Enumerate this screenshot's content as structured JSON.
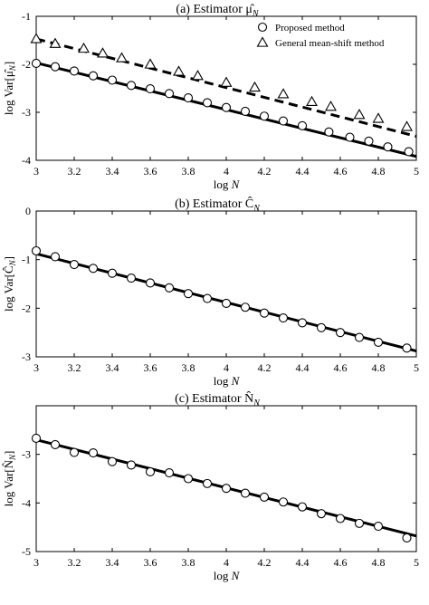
{
  "chart_data": [
    {
      "type": "scatter",
      "title": "(a) Estimator μ̂_N",
      "xlabel": "log N",
      "ylabel": "log Var[μ̂_N]",
      "xlim": [
        3,
        5
      ],
      "ylim": [
        -4,
        -1
      ],
      "x_ticks": [
        "3",
        "3.2",
        "3.4",
        "3.6",
        "3.8",
        "4",
        "4.2",
        "4.4",
        "4.6",
        "4.8",
        "5"
      ],
      "y_ticks": [
        "-1",
        "-2",
        "-3",
        "-4"
      ],
      "legend": {
        "position": "top-right",
        "entries": [
          "Proposed method",
          "General mean-shift method"
        ]
      },
      "series": [
        {
          "name": "Proposed method",
          "marker": "circle",
          "x": [
            3.0,
            3.1,
            3.2,
            3.3,
            3.4,
            3.5,
            3.6,
            3.7,
            3.8,
            3.9,
            4.0,
            4.1,
            4.2,
            4.3,
            4.4,
            4.54,
            4.65,
            4.75,
            4.85,
            4.96
          ],
          "y": [
            -1.98,
            -2.05,
            -2.14,
            -2.24,
            -2.33,
            -2.44,
            -2.51,
            -2.61,
            -2.7,
            -2.8,
            -2.9,
            -2.98,
            -3.08,
            -3.18,
            -3.28,
            -3.41,
            -3.52,
            -3.6,
            -3.72,
            -3.82
          ],
          "fit": {
            "x": [
              3,
              5
            ],
            "y": [
              -1.97,
              -3.92
            ],
            "style": "solid"
          }
        },
        {
          "name": "General mean-shift method",
          "marker": "triangle",
          "x": [
            3.0,
            3.1,
            3.25,
            3.35,
            3.45,
            3.6,
            3.75,
            3.85,
            4.0,
            4.15,
            4.3,
            4.45,
            4.55,
            4.7,
            4.8,
            4.95
          ],
          "y": [
            -1.47,
            -1.57,
            -1.67,
            -1.77,
            -1.87,
            -2.0,
            -2.15,
            -2.24,
            -2.38,
            -2.48,
            -2.62,
            -2.78,
            -2.88,
            -3.05,
            -3.13,
            -3.3
          ],
          "fit": {
            "x": [
              3,
              5
            ],
            "y": [
              -1.47,
              -3.5
            ],
            "style": "dashed"
          }
        }
      ]
    },
    {
      "type": "scatter",
      "title": "(b) Estimator Ĉ_N",
      "xlabel": "log N",
      "ylabel": "log Var[Ĉ_N]",
      "xlim": [
        3,
        5
      ],
      "ylim": [
        -3,
        0
      ],
      "x_ticks": [
        "3",
        "3.2",
        "3.4",
        "3.6",
        "3.8",
        "4",
        "4.2",
        "4.4",
        "4.6",
        "4.8",
        "5"
      ],
      "y_ticks": [
        "0",
        "-1",
        "-2",
        "-3"
      ],
      "series": [
        {
          "name": "Proposed method",
          "marker": "circle",
          "x": [
            3.0,
            3.1,
            3.2,
            3.3,
            3.4,
            3.5,
            3.6,
            3.7,
            3.8,
            3.9,
            4.0,
            4.1,
            4.2,
            4.3,
            4.4,
            4.5,
            4.6,
            4.7,
            4.8,
            4.95
          ],
          "y": [
            -0.82,
            -0.94,
            -1.1,
            -1.18,
            -1.28,
            -1.38,
            -1.48,
            -1.58,
            -1.7,
            -1.8,
            -1.9,
            -1.98,
            -2.1,
            -2.2,
            -2.3,
            -2.4,
            -2.5,
            -2.6,
            -2.7,
            -2.82
          ],
          "fit": {
            "x": [
              3,
              5
            ],
            "y": [
              -0.88,
              -2.88
            ],
            "style": "solid"
          }
        }
      ]
    },
    {
      "type": "scatter",
      "title": "(c) Estimator N̂_N",
      "xlabel": "log N",
      "ylabel": "log Var[N̂_N]",
      "xlim": [
        3,
        5
      ],
      "ylim": [
        -5,
        -2
      ],
      "x_ticks": [
        "3",
        "3.2",
        "3.4",
        "3.6",
        "3.8",
        "4",
        "4.2",
        "4.4",
        "4.6",
        "4.8",
        "5"
      ],
      "y_ticks": [
        "-3",
        "-4",
        "-5"
      ],
      "series": [
        {
          "name": "Proposed method",
          "marker": "circle",
          "x": [
            3.0,
            3.1,
            3.2,
            3.3,
            3.4,
            3.5,
            3.6,
            3.7,
            3.8,
            3.9,
            4.0,
            4.1,
            4.2,
            4.3,
            4.4,
            4.5,
            4.6,
            4.7,
            4.8,
            4.95
          ],
          "y": [
            -2.67,
            -2.8,
            -2.96,
            -2.97,
            -3.15,
            -3.22,
            -3.36,
            -3.38,
            -3.5,
            -3.6,
            -3.7,
            -3.8,
            -3.88,
            -3.98,
            -4.08,
            -4.22,
            -4.32,
            -4.42,
            -4.48,
            -4.72
          ],
          "fit": {
            "x": [
              3,
              5
            ],
            "y": [
              -2.7,
              -4.68
            ],
            "style": "solid"
          }
        }
      ]
    }
  ]
}
